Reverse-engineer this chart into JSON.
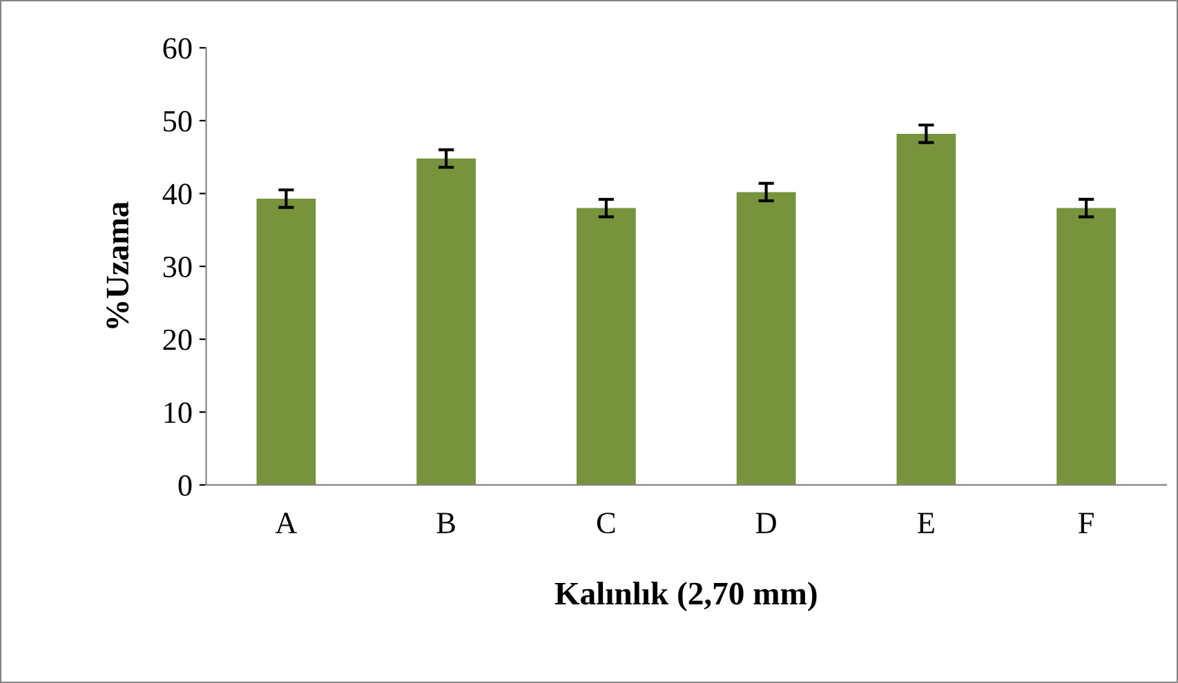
{
  "chart_data": {
    "type": "bar",
    "xlabel": "Kalınlık (2,70 mm)",
    "ylabel": "%Uzama",
    "categories": [
      "A",
      "B",
      "C",
      "D",
      "E",
      "F"
    ],
    "values": [
      39.3,
      44.8,
      38.0,
      40.2,
      48.2,
      38.0
    ],
    "errors": [
      1.2,
      1.2,
      1.2,
      1.2,
      1.2,
      1.2
    ],
    "color": "#77933c",
    "ylim": [
      0,
      60
    ],
    "yticks": [
      0,
      10,
      20,
      30,
      40,
      50,
      60
    ],
    "grid": false,
    "legend": false
  }
}
